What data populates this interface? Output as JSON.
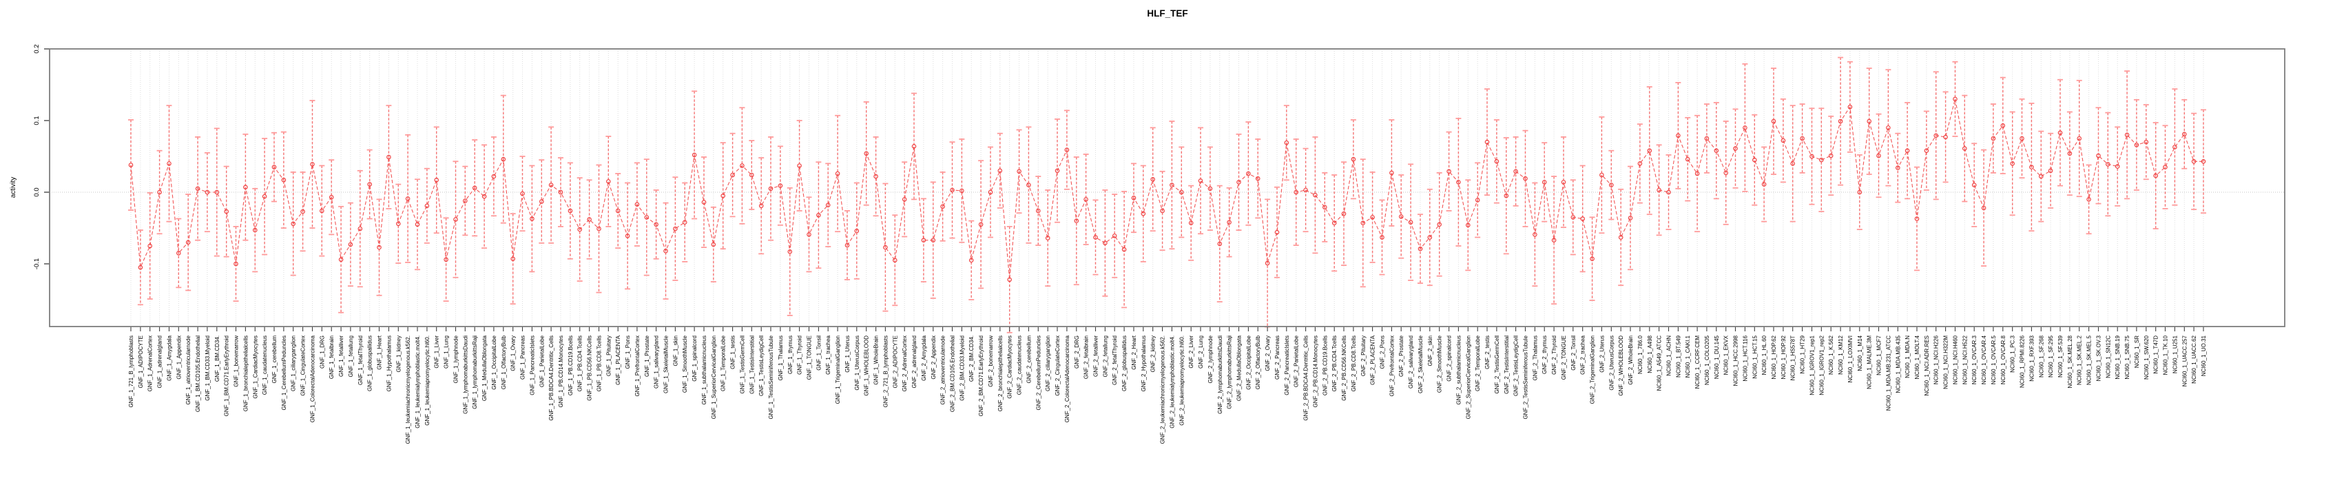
{
  "chart_data": {
    "type": "line",
    "subtype": "point-errorbar-series",
    "title": "HLF_TEF",
    "ylabel": "activity",
    "xlabel": "",
    "ylim": [
      -0.1875,
      0.2
    ],
    "yticks": [
      {
        "value": 0.2,
        "label": "0.2"
      },
      {
        "value": 0.1,
        "label": "0.1"
      },
      {
        "value": 0.0,
        "label": "0.0"
      },
      {
        "value": -0.1,
        "label": "-0.1"
      }
    ],
    "grid": "vertical-dotted-per-sample, dotted zero line",
    "legend": "none",
    "colors": {
      "line": "#f25555",
      "point": "#f04343",
      "errorbar": "#ff9a9a",
      "errorstem": "#f57373",
      "gridline": "#dcdcdc",
      "zeroline": "#c4c4c4",
      "box": "#7d7d7d",
      "tick": "#3c3c3c",
      "text": "#000000"
    },
    "samples": [
      "GNF_1_721_B_lymphoblasts",
      "GNF_1_ADIPOCYTE",
      "GNF_1_AdrenalCortex",
      "GNF_1_adrenalgland",
      "GNF_1_Amygdala",
      "GNF_1_Appendix",
      "GNF_1_atrioventricularnode",
      "GNF_1_BM.CD105.Endothelial",
      "GNF_1_BM.CD33.Myeloid",
      "GNF_1_BM.CD34.",
      "GNF_1_BM.CD71.EarlyErythroid",
      "GNF_1_bonemarrow",
      "GNF_1_bronchialepithelialcells",
      "GNF_1_CardiacMyocytes",
      "GNF_1_caudatenucleus",
      "GNF_1_cerebellum",
      "GNF_1_CerebellumPeduncles",
      "GNF_1_ciliaryganglion",
      "GNF_1_CingulateCortex",
      "GNF_1_ColorectalAdenocarcinoma",
      "GNF_1_DRG",
      "GNF_1_fetalbrain",
      "GNF_1_fetalliver",
      "GNF_1_fetallung",
      "GNF_1_fetalThyroid",
      "GNF_1_globuspallidus",
      "GNF_1_Heart",
      "GNF_1_Hypothalamus",
      "GNF_1_kidney",
      "GNF_1_leukemiachronicmyelogenous.k562.",
      "GNF_1_leukemialymphoblastic.molt4.",
      "GNF_1_leukemiapromyelocytic.hl60.",
      "GNF_1_Liver",
      "GNF_1_Lung",
      "GNF_1_lymphnode",
      "GNF_1_lymphomaburkittsDaudi",
      "GNF_1_lymphomaburkittsRaji",
      "GNF_1_MedullaOblongata",
      "GNF_1_OccipitalLobe",
      "GNF_1_OlfactoryBulb",
      "GNF_1_Ovary",
      "GNF_1_Pancreas",
      "GNF_1_PancreaticIslets",
      "GNF_1_ParietalLobe",
      "GNF_1_PB.BDCA4.Dentritic_Cells",
      "GNF_1_PB.CD14.Monocytes",
      "GNF_1_PB.CD19.Bcells",
      "GNF_1_PB.CD4.Tcells",
      "GNF_1_PB.CD56.NKCells",
      "GNF_1_PB.CD8.Tcells",
      "GNF_1_Pituitary",
      "GNF_1_PLACENTA",
      "GNF_1_Pons",
      "GNF_1_PrefrontalCortex",
      "GNF_1_Prostate",
      "GNF_1_salivarygland",
      "GNF_1_SkeletalMuscle",
      "GNF_1_skin",
      "GNF_1_SmoothMuscle",
      "GNF_1_spinalcord",
      "GNF_1_subthalamicnucleus",
      "GNF_1_SuperiorCervicalGanglion",
      "GNF_1_TemporalLobe",
      "GNF_1_testis",
      "GNF_1_TestisGermCell",
      "GNF_1_TestisInterstitial",
      "GNF_1_TestisLeydigCell",
      "GNF_1_TestisSeminiferousTubule",
      "GNF_1_Thalamus",
      "GNF_1_thymus",
      "GNF_1_Thyroid",
      "GNF_1_TONGUE",
      "GNF_1_Tonsil",
      "GNF_1_trachea",
      "GNF_1_TrigeminalGanglion",
      "GNF_1_Uterus",
      "GNF_1_UterusCorpus",
      "GNF_1_WHOLEBLOOD",
      "GNF_1_WholeBrain",
      "GNF_2_721_B_lymphoblasts",
      "GNF_2_ADIPOCYTE",
      "GNF_2_AdrenalCortex",
      "GNF_2_adrenalgland",
      "GNF_2_Amygdala",
      "GNF_2_Appendix",
      "GNF_2_atrioventricularnode",
      "GNF_2_BM.CD105.Endothelial",
      "GNF_2_BM.CD33.Myeloid",
      "GNF_2_BM.CD34.",
      "GNF_2_BM.CD71.EarlyErythroid",
      "GNF_2_bonemarrow",
      "GNF_2_bronchialepithelialcells",
      "GNF_2_CardiacMyocytes",
      "GNF_2_caudatenucleus",
      "GNF_2_cerebellum",
      "GNF_2_CerebellumPeduncles",
      "GNF_2_ciliaryganglion",
      "GNF_2_CingulateCortex",
      "GNF_2_ColorectalAdenocarcinoma",
      "GNF_2_DRG",
      "GNF_2_fetalbrain",
      "GNF_2_fetalliver",
      "GNF_2_fetallung",
      "GNF_2_fetalThyroid",
      "GNF_2_globuspallidus",
      "GNF_2_Heart",
      "GNF_2_Hypothalamus",
      "GNF_2_kidney",
      "GNF_2_leukemiachronicmyelogenous.k562.",
      "GNF_2_leukemialymphoblastic.molt4.",
      "GNF_2_leukemiapromyelocytic.hl60.",
      "GNF_2_Liver",
      "GNF_2_Lung",
      "GNF_2_lymphnode",
      "GNF_2_lymphomaburkittsDaudi",
      "GNF_2_lymphomaburkittsRaji",
      "GNF_2_MedullaOblongata",
      "GNF_2_OccipitalLobe",
      "GNF_2_OlfactoryBulb",
      "GNF_2_Ovary",
      "GNF_2_Pancreas",
      "GNF_2_PancreaticIslets",
      "GNF_2_ParietalLobe",
      "GNF_2_PB.BDCA4.Dentritic_Cells",
      "GNF_2_PB.CD14.Monocytes",
      "GNF_2_PB.CD19.Bcells",
      "GNF_2_PB.CD4.Tcells",
      "GNF_2_PB.CD56.NKCells",
      "GNF_2_PB.CD8.Tcells",
      "GNF_2_Pituitary",
      "GNF_2_PLACENTA",
      "GNF_2_Pons",
      "GNF_2_PrefrontalCortex",
      "GNF_2_Prostate",
      "GNF_2_salivarygland",
      "GNF_2_SkeletalMuscle",
      "GNF_2_skin",
      "GNF_2_SmoothMuscle",
      "GNF_2_spinalcord",
      "GNF_2_subthalamicnucleus",
      "GNF_2_SuperiorCervicalGanglion",
      "GNF_2_TemporalLobe",
      "GNF_2_testis",
      "GNF_2_TestisGermCell",
      "GNF_2_TestisInterstitial",
      "GNF_2_TestisLeydigCell",
      "GNF_2_TestisSeminiferousTubule",
      "GNF_2_Thalamus",
      "GNF_2_thymus",
      "GNF_2_Thyroid",
      "GNF_2_TONGUE",
      "GNF_2_Tonsil",
      "GNF_2_trachea",
      "GNF_2_TrigeminalGanglion",
      "GNF_2_Uterus",
      "GNF_2_UterusCorpus",
      "GNF_2_WHOLEBLOOD",
      "GNF_2_WholeBrain",
      "NCI60_1_786.0",
      "NCI60_1_A498",
      "NCI60_1_A549_ATCC",
      "NCI60_1_ACHN",
      "NCI60_1_BT.549",
      "NCI60_1_CAKI.1",
      "NCI60_1_CCRF.CEM",
      "NCI60_1_COLO205",
      "NCI60_1_DU.145",
      "NCI60_1_EKVX",
      "NCI60_1_HCC.2998",
      "NCI60_1_HCT.116",
      "NCI60_1_HCT.15",
      "NCI60_1_HL.60",
      "NCI60_1_HOP.62",
      "NCI60_1_HOP.92",
      "NCI60_1_HS578T",
      "NCI60_1_HT29",
      "NCI60_1_IGROV1_rep1",
      "NCI60_1_IGROV1_rep2",
      "NCI60_1_K.562",
      "NCI60_1_KM12",
      "NCI60_1_LOXIMVI",
      "NCI60_1_M14",
      "NCI60_1_MALME.3M",
      "NCI60_1_MCF7",
      "NCI60_1_MDA.MB.231_ATCC",
      "NCI60_1_MDA.MB.435",
      "NCI60_1_MDA.N",
      "NCI60_1_MOLT.4",
      "NCI60_1_NCI.ADR.RES",
      "NCI60_1_NCI.H226",
      "NCI60_1_NCI.H322M",
      "NCI60_1_NCI.H460",
      "NCI60_1_NCI.H522",
      "NCI60_1_OVCAR.3",
      "NCI60_1_OVCAR.4",
      "NCI60_1_OVCAR.5",
      "NCI60_1_OVCAR.8",
      "NCI60_1_PC.3",
      "NCI60_1_RPMI.8226",
      "NCI60_1_RXF.393",
      "NCI60_1_SF.268",
      "NCI60_1_SF.295",
      "NCI60_1_SF.539",
      "NCI60_1_SK.MEL.28",
      "NCI60_1_SK.MEL.2",
      "NCI60_1_SK.MEL.5",
      "NCI60_1_SK.OV.3",
      "NCI60_1_SN12C",
      "NCI60_1_SNB.19",
      "NCI60_1_SNB.75",
      "NCI60_1_SR",
      "NCI60_1_SW.620",
      "NCI60_1_T47D",
      "NCI60_1_TK.10",
      "NCI60_1_U251",
      "NCI60_1_UACC.257",
      "NCI60_1_UACC.62",
      "NCI60_1_UO.31"
    ],
    "values": [
      0.038,
      -0.105,
      -0.075,
      0.0,
      0.04,
      -0.085,
      -0.07,
      0.005,
      0.0,
      0.0,
      -0.027,
      -0.1,
      0.007,
      -0.053,
      -0.006,
      0.035,
      0.017,
      -0.044,
      -0.027,
      0.039,
      -0.026,
      -0.007,
      -0.094,
      -0.073,
      -0.051,
      0.011,
      -0.077,
      0.049,
      -0.044,
      -0.009,
      -0.045,
      -0.019,
      0.017,
      -0.094,
      -0.038,
      -0.012,
      0.006,
      -0.006,
      0.022,
      0.046,
      -0.093,
      -0.002,
      -0.037,
      -0.013,
      0.01,
      0.0,
      -0.026,
      -0.052,
      -0.038,
      -0.051,
      0.015,
      -0.026,
      -0.061,
      -0.017,
      -0.035,
      -0.045,
      -0.082,
      -0.051,
      -0.042,
      0.052,
      -0.014,
      -0.073,
      -0.005,
      0.024,
      0.037,
      0.024,
      -0.019,
      0.005,
      0.009,
      -0.083,
      0.037,
      -0.059,
      -0.032,
      -0.018,
      0.026,
      -0.074,
      -0.054,
      0.054,
      0.022,
      -0.077,
      -0.095,
      -0.01,
      0.064,
      -0.067,
      -0.067,
      -0.02,
      0.003,
      0.002,
      -0.095,
      -0.045,
      0.0,
      0.03,
      -0.122,
      0.029,
      0.01,
      -0.026,
      -0.064,
      0.03,
      0.059,
      -0.04,
      -0.01,
      -0.063,
      -0.071,
      -0.061,
      -0.08,
      -0.008,
      -0.03,
      0.018,
      -0.026,
      0.01,
      0.0,
      -0.043,
      0.016,
      0.005,
      -0.072,
      -0.042,
      0.014,
      0.026,
      0.019,
      -0.099,
      -0.056,
      0.069,
      0.0,
      0.003,
      -0.004,
      -0.021,
      -0.043,
      -0.03,
      0.046,
      -0.043,
      -0.035,
      -0.063,
      0.027,
      -0.034,
      -0.042,
      -0.079,
      -0.063,
      -0.045,
      0.029,
      0.014,
      -0.046,
      -0.011,
      0.07,
      0.043,
      -0.005,
      0.029,
      0.019,
      -0.059,
      0.014,
      -0.067,
      0.014,
      -0.035,
      -0.037,
      -0.093,
      0.024,
      0.01,
      -0.063,
      -0.036,
      0.04,
      0.058,
      0.003,
      0.0,
      0.079,
      0.046,
      0.026,
      0.075,
      0.058,
      0.027,
      0.061,
      0.09,
      0.045,
      0.011,
      0.099,
      0.072,
      0.04,
      0.075,
      0.05,
      0.045,
      0.051,
      0.099,
      0.119,
      0.0,
      0.099,
      0.051,
      0.09,
      0.034,
      0.058,
      -0.037,
      0.058,
      0.079,
      0.077,
      0.13,
      0.061,
      0.01,
      -0.022,
      0.075,
      0.093,
      0.04,
      0.075,
      0.035,
      0.022,
      0.03,
      0.083,
      0.054,
      0.075,
      -0.01,
      0.051,
      0.039,
      0.036,
      0.08,
      0.066,
      0.07,
      0.023,
      0.035,
      0.063,
      0.081,
      0.043,
      0.043
    ],
    "errors": [
      0.063,
      0.052,
      0.074,
      0.058,
      0.081,
      0.048,
      0.067,
      0.072,
      0.055,
      0.089,
      0.063,
      0.052,
      0.074,
      0.058,
      0.081,
      0.048,
      0.067,
      0.072,
      0.055,
      0.089,
      0.063,
      0.052,
      0.074,
      0.058,
      0.081,
      0.048,
      0.067,
      0.072,
      0.055,
      0.089,
      0.063,
      0.052,
      0.074,
      0.058,
      0.081,
      0.048,
      0.067,
      0.072,
      0.055,
      0.089,
      0.063,
      0.052,
      0.074,
      0.058,
      0.081,
      0.048,
      0.067,
      0.072,
      0.055,
      0.089,
      0.063,
      0.052,
      0.074,
      0.058,
      0.081,
      0.048,
      0.067,
      0.072,
      0.055,
      0.089,
      0.063,
      0.052,
      0.074,
      0.058,
      0.081,
      0.048,
      0.067,
      0.072,
      0.055,
      0.089,
      0.063,
      0.052,
      0.074,
      0.058,
      0.081,
      0.048,
      0.067,
      0.072,
      0.055,
      0.089,
      0.063,
      0.052,
      0.074,
      0.058,
      0.081,
      0.048,
      0.067,
      0.072,
      0.055,
      0.089,
      0.063,
      0.052,
      0.074,
      0.058,
      0.081,
      0.048,
      0.067,
      0.072,
      0.055,
      0.089,
      0.063,
      0.052,
      0.074,
      0.058,
      0.081,
      0.048,
      0.067,
      0.072,
      0.055,
      0.089,
      0.063,
      0.052,
      0.074,
      0.058,
      0.081,
      0.048,
      0.067,
      0.072,
      0.055,
      0.089,
      0.063,
      0.052,
      0.074,
      0.058,
      0.081,
      0.048,
      0.067,
      0.072,
      0.055,
      0.089,
      0.063,
      0.052,
      0.074,
      0.058,
      0.081,
      0.048,
      0.067,
      0.072,
      0.055,
      0.089,
      0.063,
      0.052,
      0.074,
      0.058,
      0.081,
      0.048,
      0.067,
      0.072,
      0.055,
      0.089,
      0.063,
      0.052,
      0.074,
      0.058,
      0.081,
      0.048,
      0.067,
      0.072,
      0.055,
      0.089,
      0.063,
      0.052,
      0.074,
      0.058,
      0.081,
      0.048,
      0.067,
      0.072,
      0.055,
      0.089,
      0.063,
      0.052,
      0.074,
      0.058,
      0.081,
      0.048,
      0.067,
      0.072,
      0.055,
      0.089,
      0.063,
      0.052,
      0.074,
      0.058,
      0.081,
      0.048,
      0.067,
      0.072,
      0.055,
      0.089,
      0.063,
      0.052,
      0.074,
      0.058,
      0.081,
      0.048,
      0.067,
      0.072,
      0.055,
      0.089,
      0.063,
      0.052,
      0.074,
      0.058,
      0.081,
      0.048,
      0.067,
      0.072,
      0.055,
      0.089,
      0.063,
      0.052,
      0.074,
      0.058,
      0.081,
      0.048,
      0.067,
      0.072
    ]
  }
}
